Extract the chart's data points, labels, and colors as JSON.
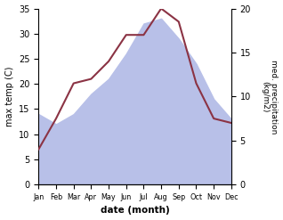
{
  "months": [
    "Jan",
    "Feb",
    "Mar",
    "Apr",
    "May",
    "Jun",
    "Jul",
    "Aug",
    "Sep",
    "Oct",
    "Nov",
    "Dec"
  ],
  "temp_max": [
    14,
    12,
    14,
    18,
    21,
    26,
    32,
    33,
    29,
    24,
    17,
    13
  ],
  "precipitation": [
    4.0,
    7.5,
    11.5,
    12.0,
    14.0,
    17.0,
    17.0,
    20.0,
    18.5,
    11.5,
    7.5,
    7.0
  ],
  "temp_ylim": [
    0,
    35
  ],
  "precip_ylim": [
    0,
    20
  ],
  "temp_yticks": [
    0,
    5,
    10,
    15,
    20,
    25,
    30,
    35
  ],
  "precip_yticks": [
    0,
    5,
    10,
    15,
    20
  ],
  "fill_color": "#b8c0e8",
  "line_color": "#8B3344",
  "xlabel": "date (month)",
  "ylabel_left": "max temp (C)",
  "ylabel_right": "med. precipitation\n(kg/m2)",
  "fig_width": 3.18,
  "fig_height": 2.47,
  "dpi": 100
}
